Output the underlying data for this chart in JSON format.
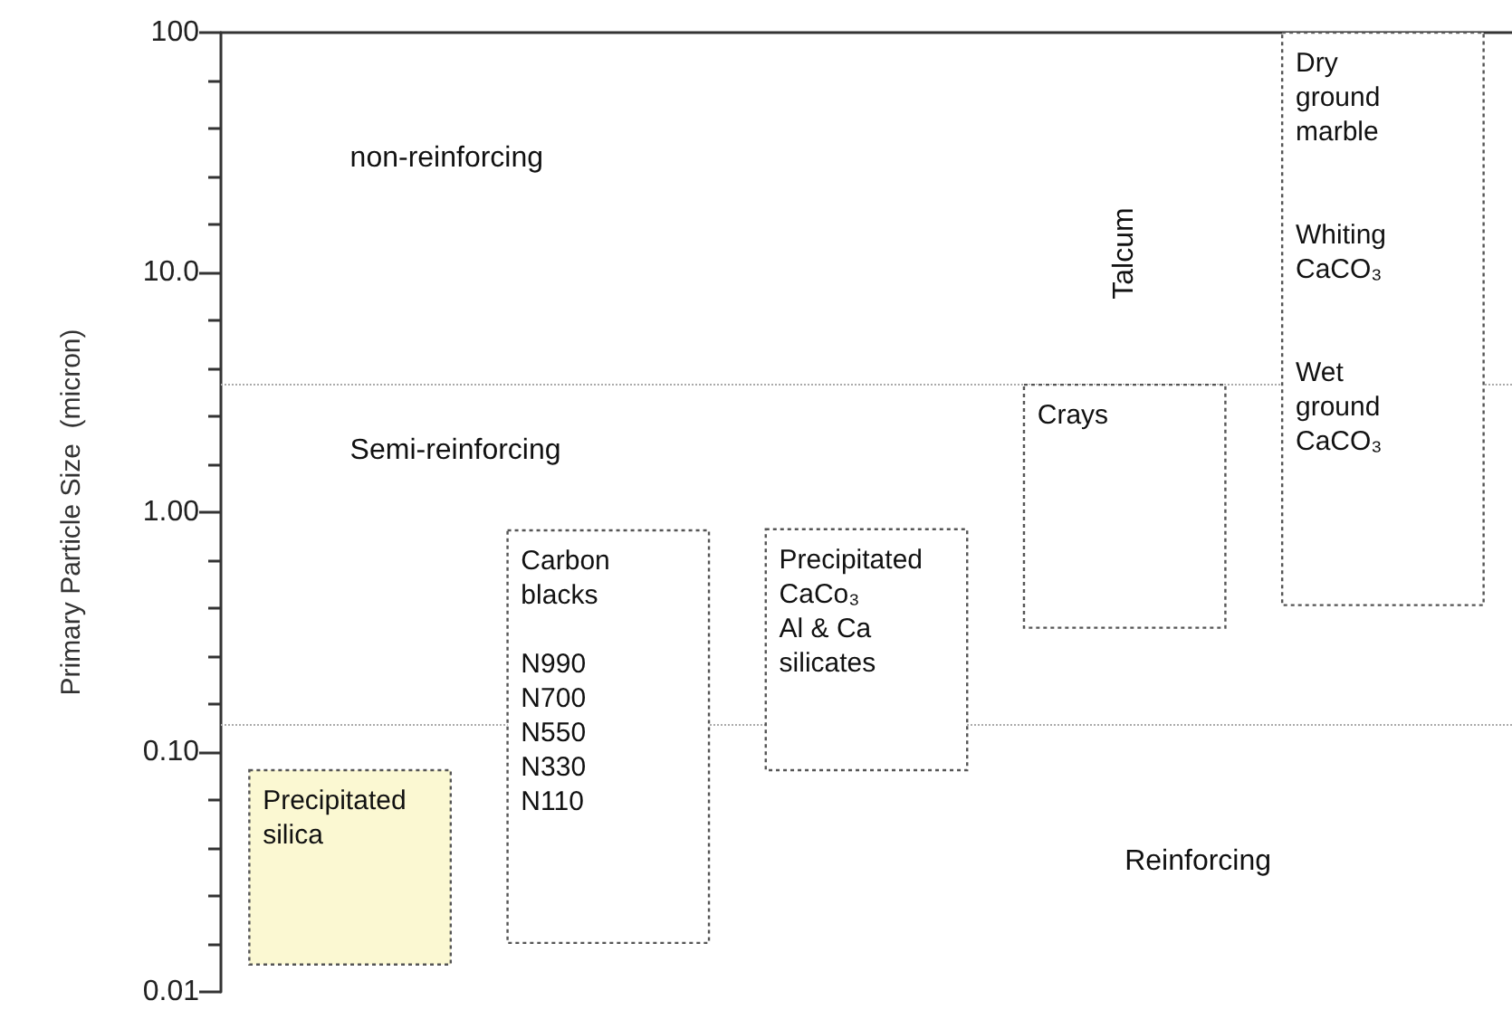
{
  "chart_data": {
    "type": "bar",
    "ylabel": "Primary Particle Size  (micron)",
    "categories": [
      null,
      null,
      null,
      null,
      null
    ],
    "base": [
      0.013,
      0.016,
      0.084,
      0.33,
      0.41
    ],
    "values": [
      0.071,
      0.824,
      0.766,
      3.07,
      99.59
    ],
    "colors": [
      "#fbf8d2",
      "#ffffff",
      "#ffffff",
      "#ffffff",
      "#ffffff"
    ],
    "value_labels": [
      "Precipitated\nsilica",
      "Carbon\nblacks\n\nN990\nN700\nN550\nN330\nN110",
      "Precipitated\nCaCo₃\nAl & Ca\nsilicates",
      "Crays",
      "Dry\nground\nmarble\n\n\nWhiting\nCaCO₃\n\n\nWet\nground\nCaCO₃"
    ],
    "log": true,
    "ylim": [
      0.01,
      100
    ],
    "yticks": [
      0.01,
      {
        "value": 0.0158,
        "label": null
      },
      {
        "value": 0.0251,
        "label": null
      },
      {
        "value": 0.0398,
        "label": null
      },
      {
        "value": 0.0631,
        "label": null
      },
      {
        "value": 0.1,
        "label": "0.10"
      },
      {
        "value": 0.158,
        "label": null
      },
      {
        "value": 0.251,
        "label": null
      },
      {
        "value": 0.398,
        "label": null
      },
      {
        "value": 0.631,
        "label": null
      },
      {
        "value": 1,
        "label": "1.00"
      },
      {
        "value": 1.58,
        "label": null
      },
      {
        "value": 2.51,
        "label": null
      },
      {
        "value": 3.98,
        "label": null
      },
      {
        "value": 6.31,
        "label": null
      },
      {
        "value": 10,
        "label": "10.0"
      },
      {
        "value": 15.8,
        "label": null
      },
      {
        "value": 25.1,
        "label": null
      },
      {
        "value": 39.8,
        "label": null
      },
      {
        "value": 63.1,
        "label": null
      },
      100
    ],
    "ref_lines": [
      {
        "axis": "y",
        "value": 3.4,
        "color": "#aaaaaa",
        "line_style": "dotted"
      },
      {
        "axis": "y",
        "value": 0.13,
        "color": "#aaaaaa",
        "line_style": "dotted"
      }
    ],
    "annotations": [
      "Talcum",
      "non-reinforcing",
      "Semi-reinforcing",
      "Reinforcing"
    ],
    "tick_labels": "y",
    "grid": false
  }
}
